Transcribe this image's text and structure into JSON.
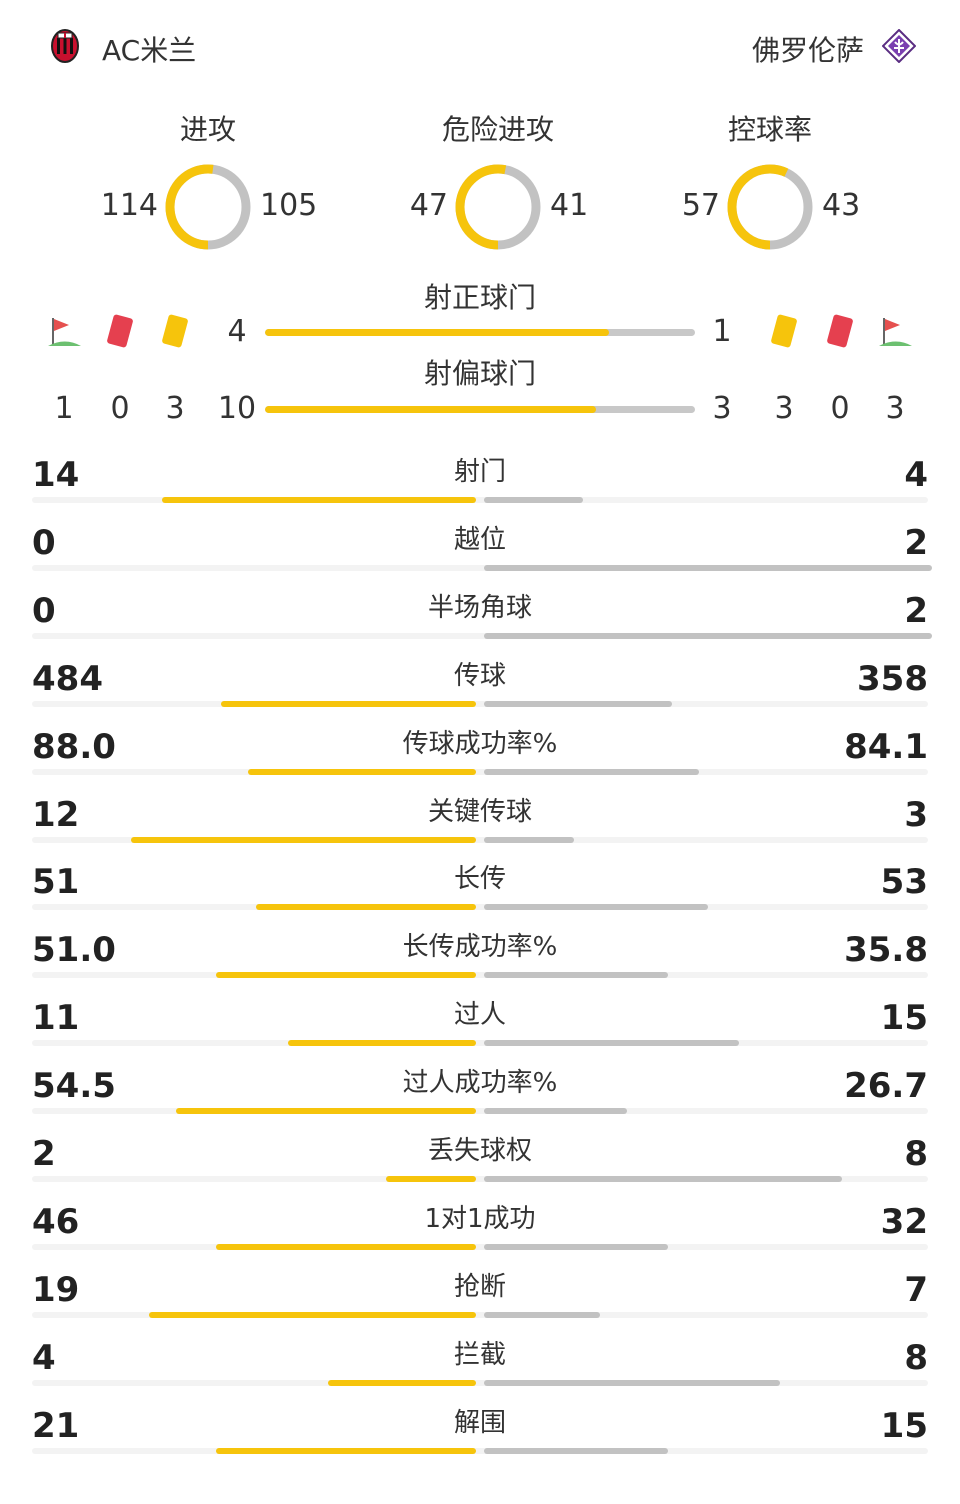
{
  "teams": {
    "home": "AC米兰",
    "away": "佛罗伦萨"
  },
  "colors": {
    "home_accent": "#f6c40c",
    "away_accent": "#c2c2c2"
  },
  "donuts": [
    {
      "title": "进攻",
      "home": "114",
      "away": "105",
      "home_share": 0.52
    },
    {
      "title": "危险进攻",
      "home": "47",
      "away": "41",
      "home_share": 0.53
    },
    {
      "title": "控球率",
      "home": "57",
      "away": "43",
      "home_share": 0.57
    }
  ],
  "shots": {
    "on_target": {
      "label": "射正球门",
      "home": "4",
      "away": "1",
      "home_share": 0.8
    },
    "off_target": {
      "label": "射偏球门",
      "home": "10",
      "away": "3",
      "home_share": 0.77
    }
  },
  "discipline": {
    "home": {
      "corners": "1",
      "red": "0",
      "yellow": "3"
    },
    "away": {
      "yellow": "3",
      "red": "0",
      "corners": "3"
    },
    "icons": [
      "corner-flag-icon",
      "red-card-icon",
      "yellow-card-icon"
    ]
  },
  "stats": [
    {
      "name": "射门",
      "home": "14",
      "away": "4",
      "home_fill": 0.7,
      "away_fill": 0.22
    },
    {
      "name": "越位",
      "home": "0",
      "away": "2",
      "home_fill": 0,
      "away_fill": 1.0
    },
    {
      "name": "半场角球",
      "home": "0",
      "away": "2",
      "home_fill": 0,
      "away_fill": 1.0
    },
    {
      "name": "传球",
      "home": "484",
      "away": "358",
      "home_fill": 0.57,
      "away_fill": 0.42
    },
    {
      "name": "传球成功率%",
      "home": "88.0",
      "away": "84.1",
      "home_fill": 0.51,
      "away_fill": 0.48
    },
    {
      "name": "关键传球",
      "home": "12",
      "away": "3",
      "home_fill": 0.77,
      "away_fill": 0.2
    },
    {
      "name": "长传",
      "home": "51",
      "away": "53",
      "home_fill": 0.49,
      "away_fill": 0.5
    },
    {
      "name": "长传成功率%",
      "home": "51.0",
      "away": "35.8",
      "home_fill": 0.58,
      "away_fill": 0.41
    },
    {
      "name": "过人",
      "home": "11",
      "away": "15",
      "home_fill": 0.42,
      "away_fill": 0.57
    },
    {
      "name": "过人成功率%",
      "home": "54.5",
      "away": "26.7",
      "home_fill": 0.67,
      "away_fill": 0.32
    },
    {
      "name": "丢失球权",
      "home": "2",
      "away": "8",
      "home_fill": 0.2,
      "away_fill": 0.8
    },
    {
      "name": "1对1成功",
      "home": "46",
      "away": "32",
      "home_fill": 0.58,
      "away_fill": 0.41
    },
    {
      "name": "抢断",
      "home": "19",
      "away": "7",
      "home_fill": 0.73,
      "away_fill": 0.26
    },
    {
      "name": "拦截",
      "home": "4",
      "away": "8",
      "home_fill": 0.33,
      "away_fill": 0.66
    },
    {
      "name": "解围",
      "home": "21",
      "away": "15",
      "home_fill": 0.58,
      "away_fill": 0.41
    }
  ]
}
